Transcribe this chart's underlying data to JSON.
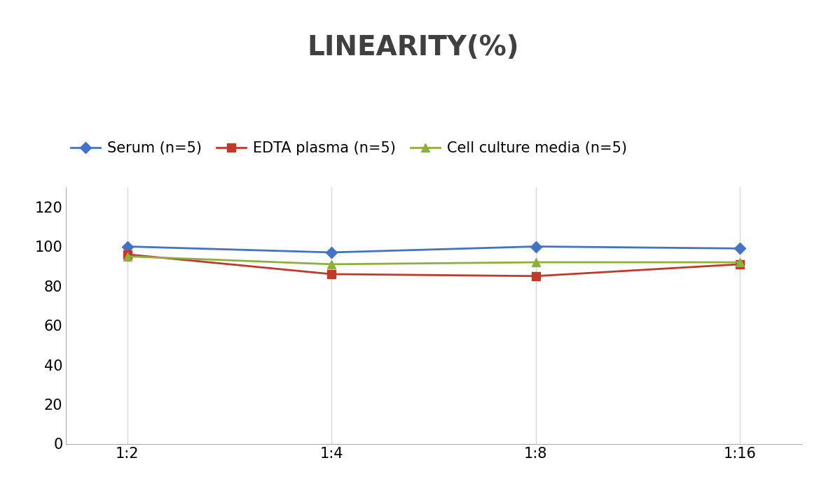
{
  "title": "LINEARITY(%)",
  "x_labels": [
    "1:2",
    "1:4",
    "1:8",
    "1:16"
  ],
  "x_positions": [
    0,
    1,
    2,
    3
  ],
  "series": [
    {
      "label": "Serum (n=5)",
      "values": [
        100,
        97,
        100,
        99
      ],
      "color": "#4472C4",
      "marker": "D",
      "markersize": 8,
      "linewidth": 2
    },
    {
      "label": "EDTA plasma (n=5)",
      "values": [
        96,
        86,
        85,
        91
      ],
      "color": "#C0392B",
      "marker": "s",
      "markersize": 8,
      "linewidth": 2
    },
    {
      "label": "Cell culture media (n=5)",
      "values": [
        95,
        91,
        92,
        92
      ],
      "color": "#8DB03C",
      "marker": "^",
      "markersize": 8,
      "linewidth": 2
    }
  ],
  "ylim": [
    0,
    130
  ],
  "yticks": [
    0,
    20,
    40,
    60,
    80,
    100,
    120
  ],
  "title_fontsize": 28,
  "title_color": "#404040",
  "tick_fontsize": 15,
  "legend_fontsize": 15,
  "background_color": "#ffffff",
  "grid_color": "#d8d8d8"
}
